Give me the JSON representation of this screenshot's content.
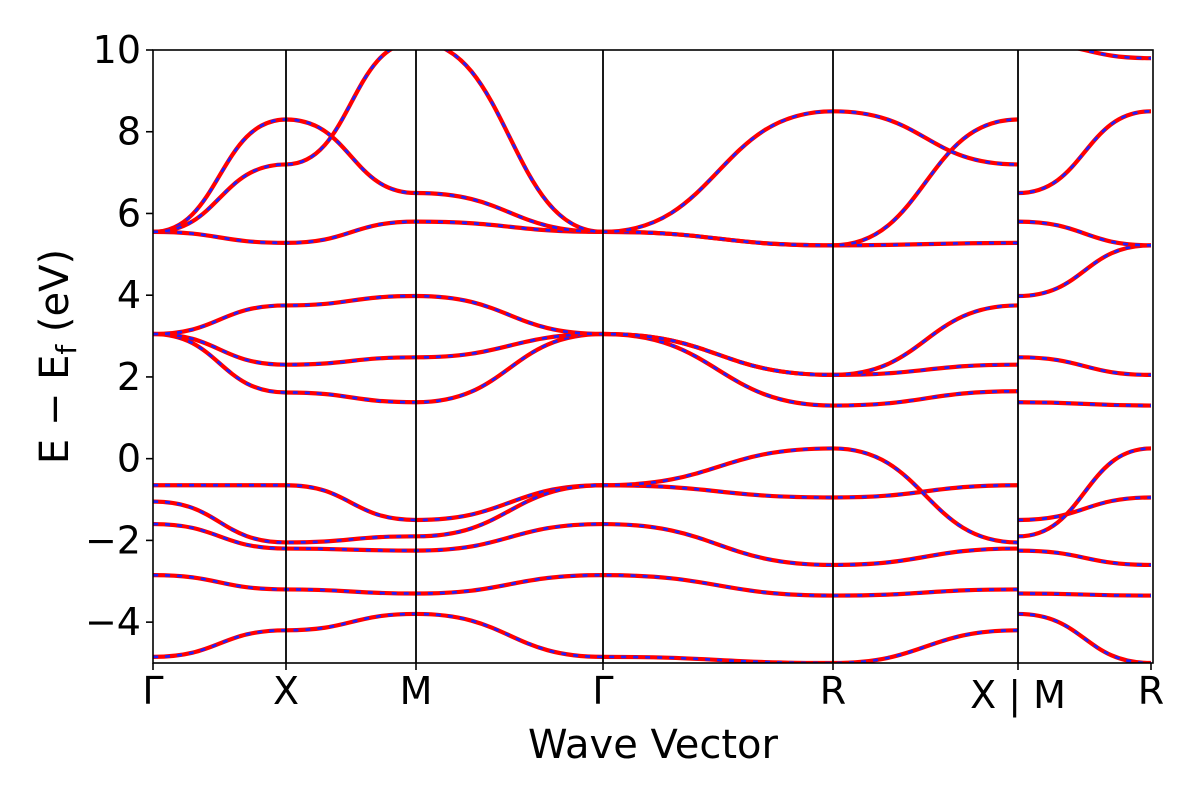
{
  "chart_data": {
    "type": "line",
    "title": "",
    "xlabel": "Wave Vector",
    "ylabel": "E − E_f (eV)",
    "ylabel_main": "E − E",
    "ylabel_sub": "f",
    "ylabel_tail": " (eV)",
    "ylim": [
      -5,
      10
    ],
    "yticks": [
      -4,
      -2,
      0,
      2,
      4,
      6,
      8,
      10
    ],
    "ytick_labels": [
      "−4",
      "−2",
      "0",
      "2",
      "4",
      "6",
      "8",
      "10"
    ],
    "k_path_segments": [
      {
        "from": "Γ",
        "to": "X",
        "length": 1.0
      },
      {
        "from": "X",
        "to": "M",
        "length": 1.0
      },
      {
        "from": "M",
        "to": "Γ",
        "length": 1.414
      },
      {
        "from": "Γ",
        "to": "R",
        "length": 1.732
      },
      {
        "from": "R",
        "to": "X",
        "length": 1.414
      },
      {
        "from": "M",
        "to": "R",
        "length": 1.0
      }
    ],
    "path_break_after_segment": 4,
    "high_symmetry_labels": [
      "Γ",
      "X",
      "M",
      "Γ",
      "R",
      "X | M",
      "R"
    ],
    "grid": false,
    "legend": "none",
    "colors": {
      "band_a": "#ff0000",
      "band_b": "#1f1fff",
      "divider": "#000000"
    },
    "bands": [
      {
        "name": "",
        "points": [
          [
            0,
            3.05
          ],
          [
            1,
            1.62
          ],
          [
            2,
            1.38
          ],
          [
            3,
            3.05
          ],
          [
            4,
            1.3
          ],
          [
            5,
            1.65
          ],
          [
            5,
            1.38
          ],
          [
            6,
            1.3
          ]
        ]
      },
      {
        "name": "",
        "points": [
          [
            0,
            3.05
          ],
          [
            1,
            2.3
          ],
          [
            2,
            2.48
          ],
          [
            3,
            3.05
          ],
          [
            4,
            2.05
          ],
          [
            5,
            2.3
          ],
          [
            5,
            2.48
          ],
          [
            6,
            2.05
          ]
        ]
      },
      {
        "name": "",
        "points": [
          [
            0,
            3.05
          ],
          [
            1,
            3.75
          ],
          [
            2,
            3.98
          ],
          [
            3,
            3.05
          ],
          [
            4,
            2.05
          ],
          [
            5,
            3.75
          ],
          [
            5,
            3.98
          ],
          [
            6,
            5.22
          ]
        ]
      },
      {
        "name": "",
        "points": [
          [
            0,
            5.55
          ],
          [
            1,
            5.28
          ],
          [
            2,
            5.8
          ],
          [
            3,
            5.55
          ],
          [
            4,
            5.22
          ],
          [
            5,
            5.28
          ],
          [
            5,
            5.8
          ],
          [
            6,
            5.22
          ]
        ]
      },
      {
        "name": "",
        "points": [
          [
            0,
            5.55
          ],
          [
            1,
            8.3
          ],
          [
            2,
            6.5
          ],
          [
            3,
            5.55
          ],
          [
            4,
            5.22
          ],
          [
            5,
            8.3
          ],
          [
            5,
            6.5
          ],
          [
            6,
            8.5
          ]
        ]
      },
      {
        "name": "",
        "points": [
          [
            0,
            5.55
          ],
          [
            1,
            7.2
          ],
          [
            2,
            10.2
          ],
          [
            3,
            5.55
          ],
          [
            4,
            8.5
          ],
          [
            5,
            7.2
          ],
          [
            5,
            10.2
          ],
          [
            6,
            9.8
          ]
        ]
      },
      {
        "name": "",
        "points": [
          [
            0,
            -0.65
          ],
          [
            1,
            -0.65
          ],
          [
            2,
            -1.5
          ],
          [
            3,
            -0.65
          ],
          [
            4,
            -0.95
          ],
          [
            5,
            -0.65
          ],
          [
            5,
            -1.5
          ],
          [
            6,
            -0.95
          ]
        ]
      },
      {
        "name": "",
        "points": [
          [
            0,
            -1.05
          ],
          [
            1,
            -2.05
          ],
          [
            2,
            -1.9
          ],
          [
            3,
            -0.65
          ],
          [
            4,
            0.25
          ],
          [
            5,
            -2.05
          ],
          [
            5,
            -1.9
          ],
          [
            6,
            0.25
          ]
        ]
      },
      {
        "name": "",
        "points": [
          [
            0,
            -1.6
          ],
          [
            1,
            -2.2
          ],
          [
            2,
            -2.25
          ],
          [
            3,
            -1.6
          ],
          [
            4,
            -2.6
          ],
          [
            5,
            -2.2
          ],
          [
            5,
            -2.25
          ],
          [
            6,
            -2.6
          ]
        ]
      },
      {
        "name": "",
        "points": [
          [
            0,
            -2.85
          ],
          [
            1,
            -3.2
          ],
          [
            2,
            -3.3
          ],
          [
            3,
            -2.85
          ],
          [
            4,
            -3.35
          ],
          [
            5,
            -3.2
          ],
          [
            5,
            -3.3
          ],
          [
            6,
            -3.35
          ]
        ]
      },
      {
        "name": "",
        "points": [
          [
            0,
            -4.85
          ],
          [
            1,
            -4.2
          ],
          [
            2,
            -3.8
          ],
          [
            3,
            -4.85
          ],
          [
            4,
            -5.0
          ],
          [
            5,
            -4.2
          ],
          [
            5,
            -3.8
          ],
          [
            6,
            -5.0
          ]
        ]
      }
    ]
  }
}
